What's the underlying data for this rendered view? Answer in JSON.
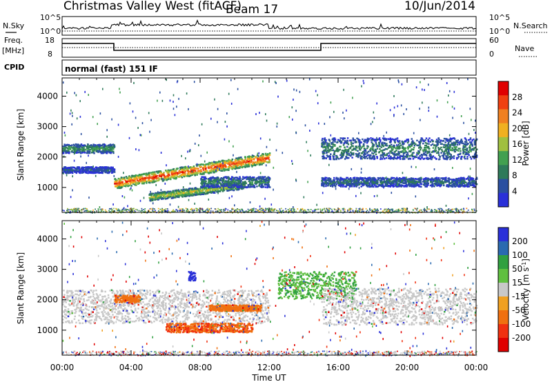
{
  "header": {
    "radar": "Christmas Valley West (fitACF)",
    "beam": "Beam 17",
    "date": "10/Jun/2014"
  },
  "strip_labels": {
    "nsky": "N.Sky",
    "nsky_ticks": [
      "10^5",
      "10^0"
    ],
    "nsearch": "N.Search",
    "nsearch_ticks": [
      "10^5",
      "10^0"
    ],
    "freq": "Freq.",
    "freq_unit": "[MHz]",
    "freq_ticks": [
      "18",
      "8"
    ],
    "nave": "Nave",
    "nave_ticks": [
      "60",
      "0"
    ],
    "cpid": "CPID",
    "cpid_value": "normal (fast) 151 IF"
  },
  "colors": {
    "power_scale": [
      "#2a30d8",
      "#2a4fa0",
      "#2e7a5a",
      "#42a050",
      "#a0c040",
      "#f0b020",
      "#f08020",
      "#f04010",
      "#e00000"
    ],
    "velocity_scale": [
      "#2a30d8",
      "#2a6ab0",
      "#30a040",
      "#60c040",
      "#c8c8c8",
      "#f0a020",
      "#f07010",
      "#f03010",
      "#e00000"
    ],
    "ground_grey": "#c8c8c8"
  },
  "chart_data": [
    {
      "type": "heatmap",
      "panel": "power",
      "ylabel": "Slant Range [km]",
      "y_ticks": [
        1000,
        2000,
        3000,
        4000
      ],
      "ylim": [
        180,
        4600
      ],
      "x_ticks": [
        "00:00",
        "04:00",
        "08:00",
        "12:00",
        "16:00",
        "20:00",
        "00:00"
      ],
      "xlim_hours": [
        0,
        24
      ],
      "colorbar": {
        "label": "Power [dB]",
        "ticks": [
          "28",
          "24",
          "20",
          "16",
          "12",
          "8",
          "4"
        ],
        "range": [
          0,
          32
        ]
      },
      "features": [
        {
          "t_start": 0,
          "t_end": 3.0,
          "range_km": 2300,
          "width_km": 300,
          "level_db": 12
        },
        {
          "t_start": 0,
          "t_end": 3.0,
          "range_km": 1600,
          "width_km": 200,
          "level_db": 6
        },
        {
          "t_start": 3.0,
          "t_end": 12.0,
          "range_from_km": 1150,
          "range_to_km": 2000,
          "width_km": 350,
          "level_db": 28
        },
        {
          "t_start": 5.0,
          "t_end": 10.5,
          "range_from_km": 700,
          "range_to_km": 1100,
          "width_km": 250,
          "level_db": 18
        },
        {
          "t_start": 8.0,
          "t_end": 12.0,
          "range_km": 1200,
          "width_km": 350,
          "level_db": 10
        },
        {
          "t_start": 15.0,
          "t_end": 24,
          "range_km": 1200,
          "width_km": 300,
          "level_db": 8
        },
        {
          "t_start": 15.0,
          "t_end": 24,
          "range_km": 2300,
          "width_km": 700,
          "level_db": 10
        }
      ]
    },
    {
      "type": "heatmap",
      "panel": "velocity",
      "ylabel": "Slant Range [km]",
      "y_ticks": [
        1000,
        2000,
        3000,
        4000
      ],
      "ylim": [
        180,
        4600
      ],
      "x_ticks": [
        "00:00",
        "04:00",
        "08:00",
        "12:00",
        "16:00",
        "20:00",
        "00:00"
      ],
      "xlim_hours": [
        0,
        24
      ],
      "xlabel": "Time UT",
      "colorbar": {
        "label": "Velocity [m s^-1]",
        "ticks": [
          "200",
          "100",
          "50",
          "15",
          "-15",
          "-50",
          "-100",
          "-200"
        ],
        "range": [
          -250,
          250
        ]
      },
      "features": [
        {
          "t_start": 0,
          "t_end": 12.0,
          "range_km": 1800,
          "width_km": 1100,
          "velocity": 0
        },
        {
          "t_start": 3.0,
          "t_end": 4.5,
          "range_km": 2050,
          "width_km": 250,
          "velocity": -60
        },
        {
          "t_start": 6.0,
          "t_end": 11.0,
          "range_km": 1100,
          "width_km": 300,
          "velocity": -70
        },
        {
          "t_start": 8.5,
          "t_end": 11.5,
          "range_km": 1750,
          "width_km": 200,
          "velocity": -60
        },
        {
          "t_start": 7.3,
          "t_end": 7.7,
          "range_km": 2800,
          "width_km": 300,
          "velocity": 200
        },
        {
          "t_start": 12.5,
          "t_end": 17.0,
          "range_km": 2500,
          "width_km": 900,
          "velocity": 30
        },
        {
          "t_start": 15.0,
          "t_end": 24,
          "range_km": 1800,
          "width_km": 1200,
          "velocity": 0
        }
      ]
    }
  ]
}
